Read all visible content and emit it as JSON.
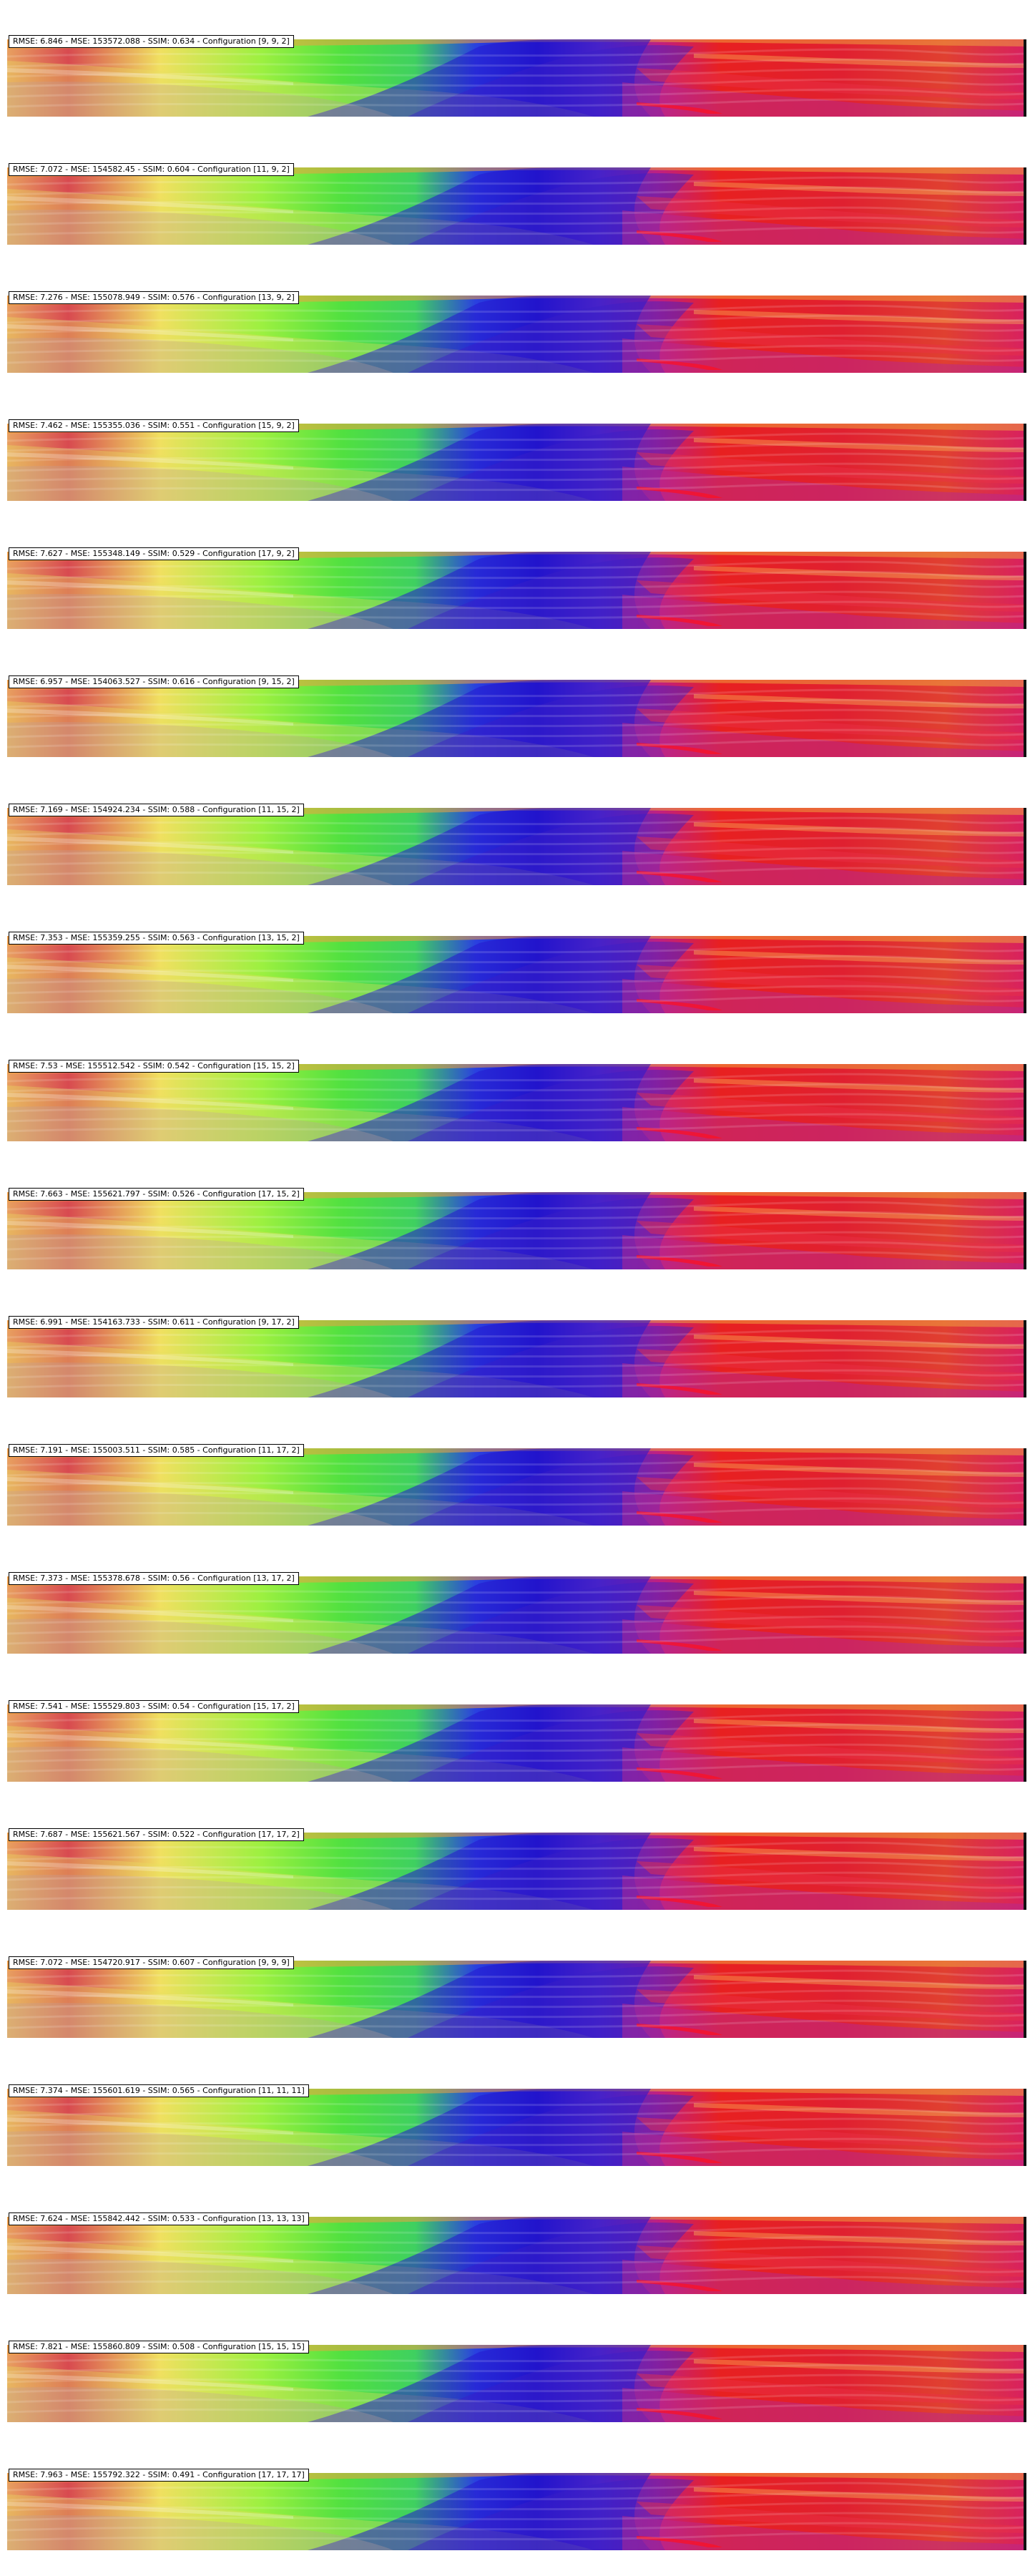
{
  "panels": [
    {
      "caption": "RMSE: 6.846 - MSE: 153572.088 - SSIM: 0.634 - Configuration [9, 9, 2]"
    },
    {
      "caption": "RMSE: 7.072 - MSE: 154582.45 - SSIM: 0.604 - Configuration [11, 9, 2]"
    },
    {
      "caption": "RMSE: 7.276 - MSE: 155078.949 - SSIM: 0.576 - Configuration [13, 9, 2]"
    },
    {
      "caption": "RMSE: 7.462 - MSE: 155355.036 - SSIM: 0.551 - Configuration [15, 9, 2]"
    },
    {
      "caption": "RMSE: 7.627 - MSE: 155348.149 - SSIM: 0.529 - Configuration [17, 9, 2]"
    },
    {
      "caption": "RMSE: 6.957 - MSE: 154063.527 - SSIM: 0.616 - Configuration [9, 15, 2]"
    },
    {
      "caption": "RMSE: 7.169 - MSE: 154924.234 - SSIM: 0.588 - Configuration [11, 15, 2]"
    },
    {
      "caption": "RMSE: 7.353 - MSE: 155359.255 - SSIM: 0.563 - Configuration [13, 15, 2]"
    },
    {
      "caption": "RMSE: 7.53 - MSE: 155512.542 - SSIM: 0.542 - Configuration [15, 15, 2]"
    },
    {
      "caption": "RMSE: 7.663 - MSE: 155621.797 - SSIM: 0.526 - Configuration [17, 15, 2]"
    },
    {
      "caption": "RMSE: 6.991 - MSE: 154163.733 - SSIM: 0.611 - Configuration [9, 17, 2]"
    },
    {
      "caption": "RMSE: 7.191 - MSE: 155003.511 - SSIM: 0.585 - Configuration [11, 17, 2]"
    },
    {
      "caption": "RMSE: 7.373 - MSE: 155378.678 - SSIM: 0.56 - Configuration [13, 17, 2]"
    },
    {
      "caption": "RMSE: 7.541 - MSE: 155529.803 - SSIM: 0.54 - Configuration [15, 17, 2]"
    },
    {
      "caption": "RMSE: 7.687 - MSE: 155621.567 - SSIM: 0.522 - Configuration [17, 17, 2]"
    },
    {
      "caption": "RMSE: 7.072 - MSE: 154720.917 - SSIM: 0.607 - Configuration [9, 9, 9]"
    },
    {
      "caption": "RMSE: 7.374 - MSE: 155601.619 - SSIM: 0.565 - Configuration [11, 11, 11]"
    },
    {
      "caption": "RMSE: 7.624 - MSE: 155842.442 - SSIM: 0.533 - Configuration [13, 13, 13]"
    },
    {
      "caption": "RMSE: 7.821 - MSE: 155860.809 - SSIM: 0.508 - Configuration [15, 15, 15]"
    },
    {
      "caption": "RMSE: 7.963 - MSE: 155792.322 - SSIM: 0.491 - Configuration [17, 17, 17]"
    }
  ]
}
